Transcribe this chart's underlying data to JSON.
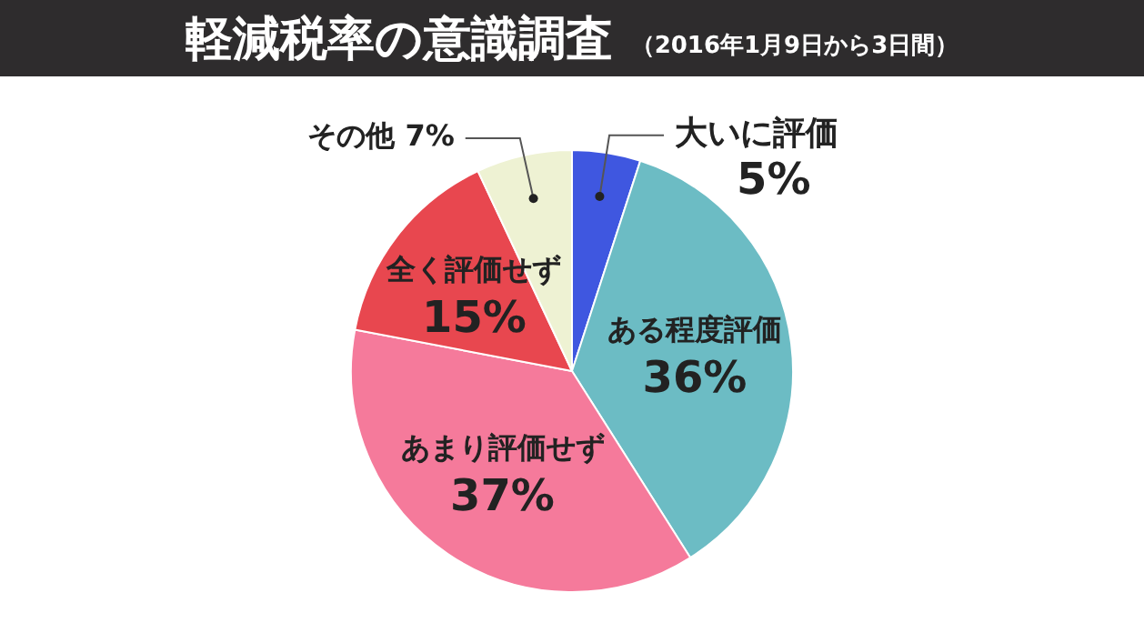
{
  "chart_data": {
    "type": "pie",
    "title": "軽減税率の意識調査",
    "subtitle": "（2016年1月9日から3日間）",
    "categories": [
      "大いに評価",
      "ある程度評価",
      "あまり評価せず",
      "全く評価せず",
      "その他"
    ],
    "values": [
      5,
      36,
      37,
      15,
      7
    ],
    "colors": [
      "#3f57e0",
      "#6cbcc4",
      "#f57a9b",
      "#e8474f",
      "#eef2d3"
    ],
    "value_labels": [
      "5%",
      "36%",
      "37%",
      "15%",
      "7%"
    ],
    "legend": false
  }
}
